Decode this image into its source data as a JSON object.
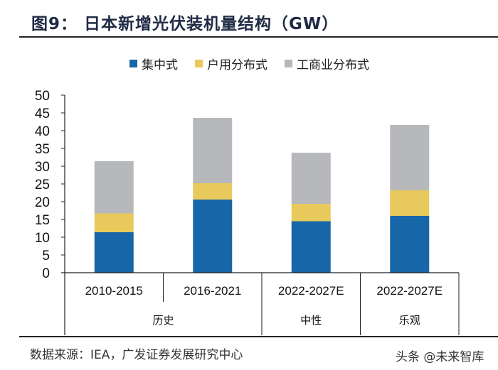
{
  "title": "图9： 日本新增光伏装机量结构（GW）",
  "source": "数据来源：IEA，广发证券发展研究中心",
  "watermark": "头条 @未来智库",
  "colors": {
    "centralized": "#1766a8",
    "residential": "#e8c95c",
    "commercial": "#b7b8bb",
    "axis": "#222222"
  },
  "chart_data": {
    "type": "bar",
    "stacked": true,
    "title": "日本新增光伏装机量结构（GW）",
    "xlabel": "",
    "ylabel": "",
    "ylim": [
      0,
      50
    ],
    "yticks": [
      0,
      5,
      10,
      15,
      20,
      25,
      30,
      35,
      40,
      45,
      50
    ],
    "grid": false,
    "legend_position": "top-center",
    "categories": [
      "2010-2015",
      "2016-2021",
      "2022-2027E",
      "2022-2027E"
    ],
    "groups": [
      {
        "label": "历史",
        "span": 2
      },
      {
        "label": "中性",
        "span": 1
      },
      {
        "label": "乐观",
        "span": 1
      }
    ],
    "series": [
      {
        "name": "集中式",
        "color": "#1766a8",
        "values": [
          11.4,
          20.6,
          14.5,
          16.0
        ]
      },
      {
        "name": "户用分布式",
        "color": "#e8c95c",
        "values": [
          5.3,
          4.6,
          4.9,
          7.2
        ]
      },
      {
        "name": "工商业分布式",
        "color": "#b7b8bb",
        "values": [
          14.7,
          18.4,
          14.4,
          18.4
        ]
      }
    ]
  }
}
